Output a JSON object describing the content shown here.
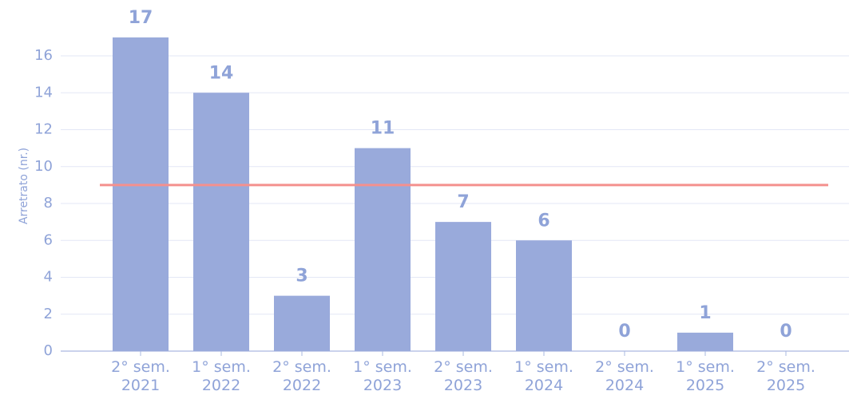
{
  "chart_data": {
    "type": "bar",
    "y_label": "Arretrato (nr.)",
    "categories": [
      "2° sem.\n2021",
      "1° sem.\n2022",
      "2° sem.\n2022",
      "1° sem.\n2023",
      "2° sem.\n2023",
      "1° sem.\n2024",
      "2° sem.\n2024",
      "1° sem.\n2025",
      "2° sem.\n2025"
    ],
    "values": [
      17,
      14,
      3,
      11,
      7,
      6,
      0,
      1,
      0
    ],
    "color": "#99aadb",
    "reference_line": {
      "value": 9,
      "color": "#f4908e"
    },
    "ylim": [
      0,
      17.8
    ],
    "yticks": [
      0,
      2,
      4,
      6,
      8,
      10,
      12,
      14,
      16
    ],
    "grid": true
  }
}
